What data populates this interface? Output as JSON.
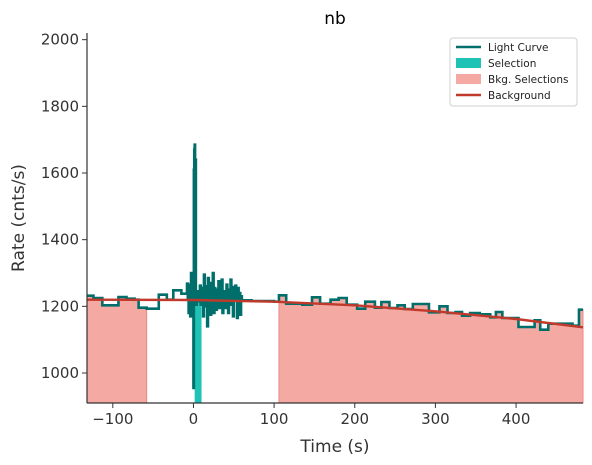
{
  "chart_data": {
    "type": "line",
    "title": "nb",
    "xlabel": "Time (s)",
    "ylabel": "Rate (cnts/s)",
    "xlim": [
      -132,
      483
    ],
    "ylim": [
      910,
      2020
    ],
    "xticks": [
      -100,
      0,
      100,
      200,
      300,
      400
    ],
    "yticks": [
      1000,
      1200,
      1400,
      1600,
      1800,
      2000
    ],
    "legend": {
      "placement": "top-right",
      "entries": [
        {
          "label": "Light Curve",
          "kind": "line",
          "color": "#006e6a"
        },
        {
          "label": "Selection",
          "kind": "patch",
          "color": "#1fc3b6"
        },
        {
          "label": "Bkg. Selections",
          "kind": "patch",
          "color": "#f4a9a3"
        },
        {
          "label": "Background",
          "kind": "line",
          "color": "#c0392b"
        }
      ]
    },
    "colors": {
      "light_curve": "#006e6a",
      "selection": "#1fc3b6",
      "bkg_selection": "#f4a9a3",
      "bkg_selection_edge": "#ee8a82",
      "background": "#c0392b"
    },
    "selection": [
      1.5,
      10
    ],
    "bkg_selections": [
      [
        -132,
        -58
      ],
      [
        106,
        483
      ]
    ],
    "background": {
      "x": [
        -132,
        0,
        100,
        200,
        300,
        400,
        483
      ],
      "y": [
        1220,
        1219,
        1214,
        1203,
        1185,
        1162,
        1137
      ]
    },
    "light_curve": {
      "coarse": [
        [
          -132,
          1232
        ],
        [
          -124,
          1225
        ],
        [
          -113,
          1203
        ],
        [
          -93,
          1228
        ],
        [
          -83,
          1223
        ],
        [
          -73,
          1220
        ],
        [
          -68,
          1196
        ],
        [
          -58,
          1193
        ],
        [
          -43,
          1235
        ],
        [
          -33,
          1220
        ],
        [
          -25,
          1248
        ],
        [
          -15,
          1238
        ],
        [
          -8,
          1230
        ],
        [
          60,
          1218
        ],
        [
          72,
          1216
        ],
        [
          100,
          1214
        ],
        [
          106,
          1233
        ],
        [
          115,
          1208
        ],
        [
          135,
          1205
        ],
        [
          147,
          1227
        ],
        [
          157,
          1208
        ],
        [
          170,
          1220
        ],
        [
          180,
          1225
        ],
        [
          190,
          1205
        ],
        [
          203,
          1193
        ],
        [
          213,
          1214
        ],
        [
          225,
          1196
        ],
        [
          233,
          1213
        ],
        [
          243,
          1195
        ],
        [
          253,
          1203
        ],
        [
          262,
          1192
        ],
        [
          272,
          1207
        ],
        [
          292,
          1182
        ],
        [
          305,
          1200
        ],
        [
          315,
          1180
        ],
        [
          325,
          1183
        ],
        [
          333,
          1172
        ],
        [
          343,
          1180
        ],
        [
          355,
          1176
        ],
        [
          368,
          1167
        ],
        [
          375,
          1183
        ],
        [
          383,
          1165
        ],
        [
          403,
          1138
        ],
        [
          423,
          1158
        ],
        [
          430,
          1130
        ],
        [
          440,
          1148
        ],
        [
          450,
          1148
        ],
        [
          470,
          1142
        ],
        [
          478,
          1190
        ]
      ],
      "end": 483,
      "fine_range": [
        -8,
        60
      ],
      "fine": [
        [
          -8,
          1268
        ],
        [
          -7,
          1220
        ],
        [
          -6,
          1180
        ],
        [
          -5,
          1265
        ],
        [
          -4,
          1170
        ],
        [
          -3,
          1300
        ],
        [
          -2,
          1190
        ],
        [
          -1,
          1260
        ],
        [
          0,
          955
        ],
        [
          0.5,
          1610
        ],
        [
          1,
          1670
        ],
        [
          1.5,
          1685
        ],
        [
          2,
          1640
        ],
        [
          3,
          1205
        ],
        [
          4,
          1245
        ],
        [
          5,
          1215
        ],
        [
          6,
          1235
        ],
        [
          7,
          1228
        ],
        [
          8,
          1262
        ],
        [
          9,
          1205
        ],
        [
          10,
          1255
        ],
        [
          11,
          1220
        ],
        [
          12,
          1170
        ],
        [
          13,
          1295
        ],
        [
          14,
          1245
        ],
        [
          15,
          1200
        ],
        [
          16,
          1260
        ],
        [
          17,
          1140
        ],
        [
          18,
          1285
        ],
        [
          19,
          1230
        ],
        [
          20,
          1240
        ],
        [
          21,
          1175
        ],
        [
          22,
          1270
        ],
        [
          23,
          1215
        ],
        [
          24,
          1300
        ],
        [
          25,
          1180
        ],
        [
          26,
          1255
        ],
        [
          27,
          1225
        ],
        [
          28,
          1190
        ],
        [
          29,
          1250
        ],
        [
          30,
          1230
        ],
        [
          31,
          1275
        ],
        [
          32,
          1195
        ],
        [
          33,
          1262
        ],
        [
          34,
          1215
        ],
        [
          35,
          1280
        ],
        [
          36,
          1180
        ],
        [
          37,
          1245
        ],
        [
          38,
          1240
        ],
        [
          39,
          1195
        ],
        [
          40,
          1220
        ],
        [
          41,
          1265
        ],
        [
          42,
          1235
        ],
        [
          43,
          1180
        ],
        [
          44,
          1250
        ],
        [
          45,
          1212
        ],
        [
          46,
          1280
        ],
        [
          47,
          1205
        ],
        [
          48,
          1258
        ],
        [
          49,
          1170
        ],
        [
          50,
          1235
        ],
        [
          51,
          1220
        ],
        [
          52,
          1262
        ],
        [
          53,
          1228
        ],
        [
          54,
          1165
        ],
        [
          55,
          1255
        ],
        [
          56,
          1205
        ],
        [
          57,
          1240
        ],
        [
          58,
          1175
        ],
        [
          59,
          1230
        ]
      ]
    }
  }
}
